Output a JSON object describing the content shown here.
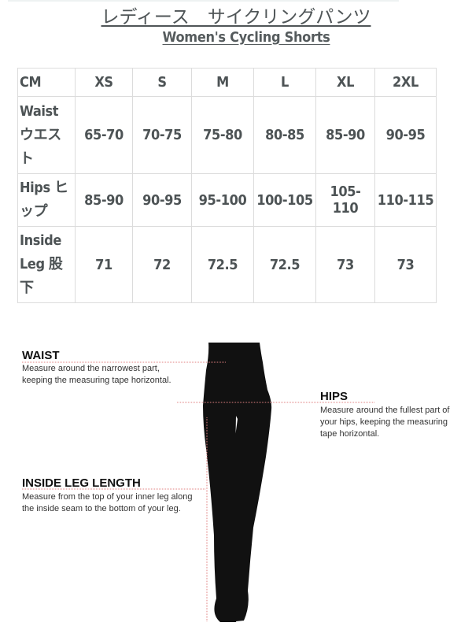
{
  "title_jp": "レディース　サイクリングパンツ",
  "title_en": "Women's Cycling Shorts",
  "table": {
    "headers": [
      "CM",
      "XS",
      "S",
      "M",
      "L",
      "XL",
      "2XL"
    ],
    "rows": [
      {
        "label": "Waist ウエスト",
        "values": [
          "65-70",
          "70-75",
          "75-80",
          "80-85",
          "85-90",
          "90-95"
        ]
      },
      {
        "label": "Hips ヒップ",
        "values": [
          "85-90",
          "90-95",
          "95-100",
          "100-105",
          "105-110",
          "110-115"
        ]
      },
      {
        "label": "Inside Leg 股下",
        "values": [
          "71",
          "72",
          "72.5",
          "72.5",
          "73",
          "73"
        ]
      }
    ]
  },
  "guide": {
    "waist": {
      "title": "WAIST",
      "desc": "Measure around the narrowest part, keeping the measuring tape horizontal."
    },
    "hips": {
      "title": "HIPS",
      "desc": "Measure around the fullest part of your hips, keeping the measuring tape horizontal."
    },
    "inside_leg": {
      "title": "INSIDE LEG LENGTH",
      "desc": "Measure from the top of your inner leg along the inside seam to the bottom of your leg."
    }
  },
  "colors": {
    "silhouette": "#111111",
    "guide_line": "#e08080",
    "text": "#4d5355"
  }
}
